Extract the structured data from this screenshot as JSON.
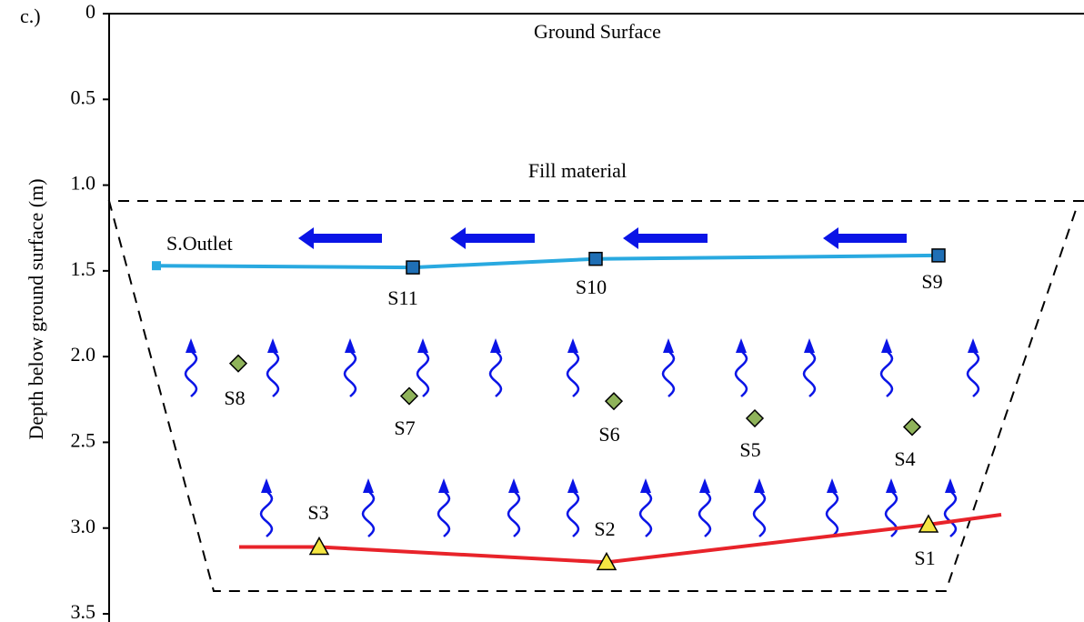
{
  "panel_label": "c.)",
  "axis": {
    "label": "Depth below ground surface (m)",
    "lim": [
      0,
      3.5
    ],
    "ticks": [
      0,
      0.5,
      {
        "value": 1,
        "label": "1.0"
      },
      1.5,
      {
        "value": 2,
        "label": "2.0"
      },
      2.5,
      {
        "value": 3,
        "label": "3.0"
      },
      3.5
    ]
  },
  "annotations": {
    "ground": "Ground Surface",
    "fill": "Fill material"
  },
  "sensors": [
    {
      "name": "S.Outlet",
      "depth": 1.47,
      "marker": "small-square",
      "color": "#29a9e0"
    },
    {
      "name": "S11",
      "depth": 1.48,
      "marker": "square",
      "color": "#1f6fb5"
    },
    {
      "name": "S10",
      "depth": 1.43,
      "marker": "square",
      "color": "#1f6fb5"
    },
    {
      "name": "S9",
      "depth": 1.41,
      "marker": "square",
      "color": "#1f6fb5"
    },
    {
      "name": "S8",
      "depth": 2.04,
      "marker": "diamond",
      "color": "#8fb35a"
    },
    {
      "name": "S7",
      "depth": 2.23,
      "marker": "diamond",
      "color": "#8fb35a"
    },
    {
      "name": "S6",
      "depth": 2.26,
      "marker": "diamond",
      "color": "#8fb35a"
    },
    {
      "name": "S5",
      "depth": 2.36,
      "marker": "diamond",
      "color": "#8fb35a"
    },
    {
      "name": "S4",
      "depth": 2.41,
      "marker": "diamond",
      "color": "#8fb35a"
    },
    {
      "name": "S3",
      "depth": 3.11,
      "marker": "triangle",
      "color": "#f5e642"
    },
    {
      "name": "S2",
      "depth": 3.2,
      "marker": "triangle",
      "color": "#f5e642"
    },
    {
      "name": "S1",
      "depth": 2.98,
      "marker": "triangle",
      "color": "#f5e642"
    }
  ]
}
